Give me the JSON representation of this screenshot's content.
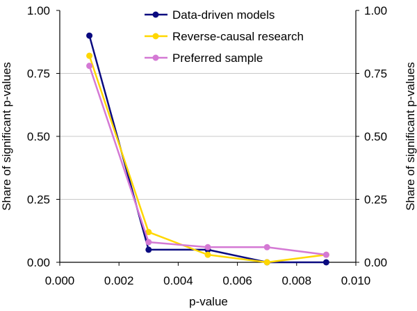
{
  "chart_data": {
    "type": "line",
    "title": "",
    "xlabel": "p-value",
    "ylabel_left": "Share of significant p-values",
    "ylabel_right": "Share of significant p-values",
    "xlim": [
      0.0,
      0.01
    ],
    "ylim": [
      0.0,
      1.0
    ],
    "x_ticks": [
      0.0,
      0.002,
      0.004,
      0.006,
      0.008,
      0.01
    ],
    "x_tick_labels": [
      "0.000",
      "0.002",
      "0.004",
      "0.006",
      "0.008",
      "0.010"
    ],
    "y_ticks": [
      0.0,
      0.25,
      0.5,
      0.75,
      1.0
    ],
    "y_tick_labels": [
      "0.00",
      "0.25",
      "0.50",
      "0.75",
      "1.00"
    ],
    "grid": "horizontal",
    "legend_position": "top-right",
    "x": [
      0.001,
      0.003,
      0.005,
      0.007,
      0.009
    ],
    "series": [
      {
        "name": "Data-driven models",
        "color": "#0a0a80",
        "values": [
          0.9,
          0.05,
          0.05,
          0.0,
          0.0
        ]
      },
      {
        "name": "Reverse-causal research",
        "color": "#ffd700",
        "values": [
          0.82,
          0.12,
          0.03,
          0.0,
          0.03
        ]
      },
      {
        "name": "Preferred sample",
        "color": "#d479d4",
        "values": [
          0.78,
          0.08,
          0.06,
          0.06,
          0.03
        ]
      }
    ]
  }
}
